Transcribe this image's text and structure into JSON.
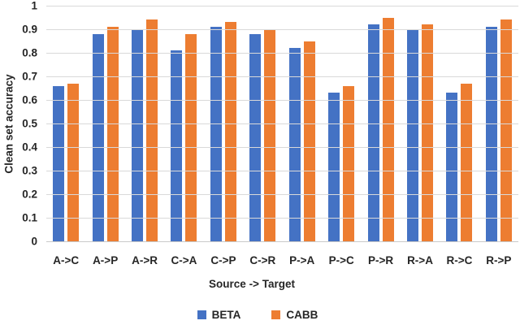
{
  "chart_data": {
    "type": "bar",
    "title": "",
    "xlabel": "Source -> Target",
    "ylabel": "Clean set accuracy",
    "ylim": [
      0,
      1
    ],
    "ytick_step": 0.1,
    "yticks": [
      "1",
      "0.9",
      "0.8",
      "0.7",
      "0.6",
      "0.5",
      "0.4",
      "0.3",
      "0.2",
      "0.1",
      "0"
    ],
    "grid": true,
    "legend_position": "bottom",
    "categories": [
      "A->C",
      "A->P",
      "A->R",
      "C->A",
      "C->P",
      "C->R",
      "P->A",
      "P->C",
      "P->R",
      "R->A",
      "R->C",
      "R->P"
    ],
    "series": [
      {
        "name": "BETA",
        "color": "#4472C4",
        "values": [
          0.66,
          0.88,
          0.9,
          0.81,
          0.91,
          0.88,
          0.82,
          0.63,
          0.92,
          0.9,
          0.63,
          0.91
        ]
      },
      {
        "name": "CABB",
        "color": "#ED7D31",
        "values": [
          0.67,
          0.91,
          0.94,
          0.88,
          0.93,
          0.9,
          0.85,
          0.66,
          0.95,
          0.92,
          0.67,
          0.94
        ]
      }
    ]
  },
  "colors": {
    "beta_blue": "#4472C4",
    "cabb_orange": "#ED7D31",
    "gridline": "#d9d9d9",
    "text": "#262626",
    "background": "#ffffff"
  }
}
